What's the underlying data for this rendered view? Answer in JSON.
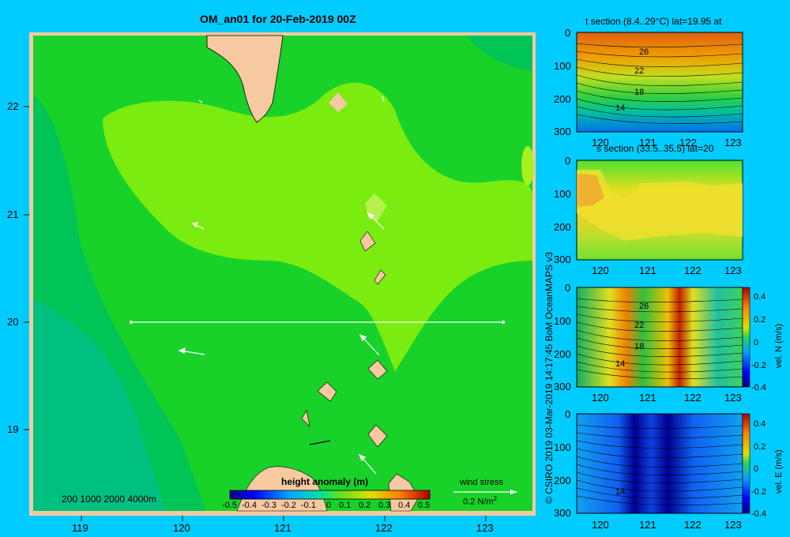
{
  "map": {
    "title": "OM_an01 for 20-Feb-2019 00Z",
    "lon_ticks": [
      "119",
      "120",
      "121",
      "122",
      "123"
    ],
    "lat_ticks": [
      "22",
      "21",
      "20",
      "19"
    ],
    "depth_scale": "200  1000  2000  4000m",
    "colorbar_title": "height anomaly (m)",
    "colorbar_ticks": [
      "-0.5",
      "-0.4",
      "-0.3",
      "-0.2",
      "-0.1",
      "0",
      "0.1",
      "0.2",
      "0.3",
      "0.4",
      "0.5"
    ],
    "wind_label": "wind stress",
    "wind_scale": "0.2 N/m",
    "wind_scale_sup": "2",
    "colors": {
      "land": "#f7c9a0",
      "background": "#00ccff",
      "base": "#18d22a",
      "high": "#7aec10",
      "low": "#00c47c"
    }
  },
  "panels": {
    "t_section": {
      "title": "t section (8.4..29°C) lat=19.95 at",
      "contour_labels": [
        "26",
        "22",
        "18",
        "14"
      ]
    },
    "s_section": {
      "title": "s section (33.5..35.5) lat=20"
    },
    "v_section": {
      "contour_labels": [
        "26",
        "22",
        "18",
        "14"
      ],
      "colorbar_label": "vel. N  (m/s)",
      "colorbar_ticks": [
        "0.4",
        "0.2",
        "0",
        "-0.2",
        "-0.4"
      ]
    },
    "u_section": {
      "contour_labels": [
        "14"
      ],
      "colorbar_label": "vel. E  (m/s)",
      "colorbar_ticks": [
        "0.4",
        "0.2",
        "0",
        "-0.2",
        "-0.4"
      ]
    },
    "depth_ticks": [
      "0",
      "100",
      "200",
      "300"
    ],
    "lon_ticks": [
      "120",
      "121",
      "122",
      "123"
    ]
  },
  "credit": "© CSIRO 2019   03-Mar-2019 14:17:45 BoM OceanMAPS v3"
}
